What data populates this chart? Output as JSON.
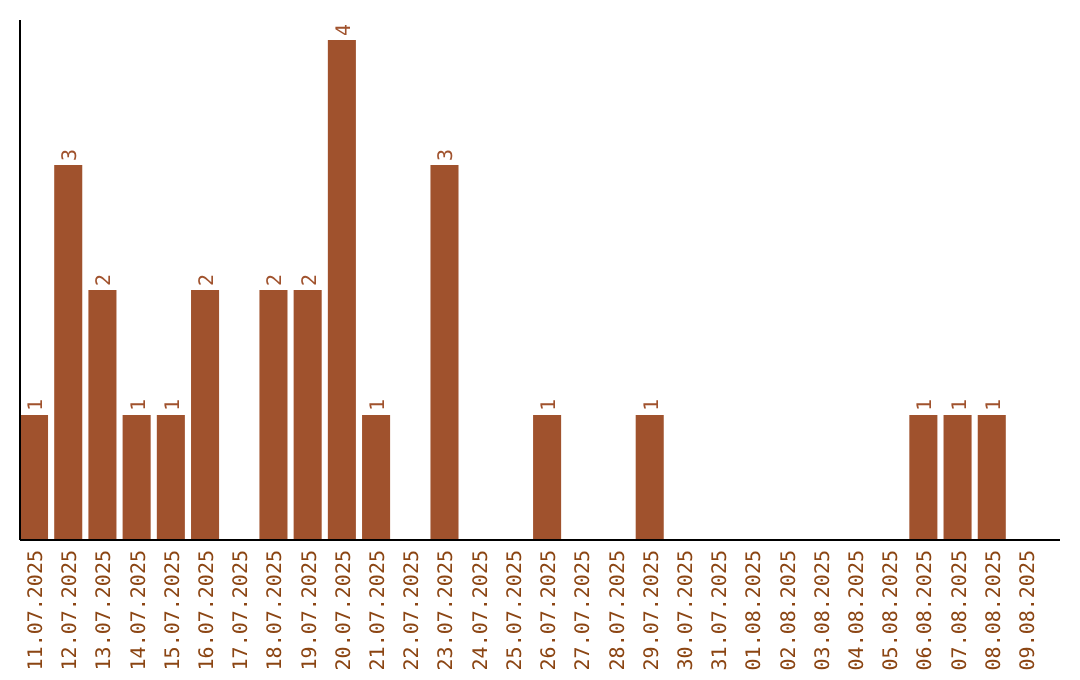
{
  "chart_data": {
    "type": "bar",
    "categories": [
      "11.07.2025",
      "12.07.2025",
      "13.07.2025",
      "14.07.2025",
      "15.07.2025",
      "16.07.2025",
      "17.07.2025",
      "18.07.2025",
      "19.07.2025",
      "20.07.2025",
      "21.07.2025",
      "22.07.2025",
      "23.07.2025",
      "24.07.2025",
      "25.07.2025",
      "26.07.2025",
      "27.07.2025",
      "28.07.2025",
      "29.07.2025",
      "30.07.2025",
      "31.07.2025",
      "01.08.2025",
      "02.08.2025",
      "03.08.2025",
      "04.08.2025",
      "05.08.2025",
      "06.08.2025",
      "07.08.2025",
      "08.08.2025",
      "09.08.2025"
    ],
    "values": [
      1,
      3,
      2,
      1,
      1,
      2,
      0,
      2,
      2,
      4,
      1,
      0,
      3,
      0,
      0,
      1,
      0,
      0,
      1,
      0,
      0,
      0,
      0,
      0,
      0,
      0,
      1,
      1,
      1,
      0
    ],
    "value_labels": [
      "1",
      "3",
      "2",
      "1",
      "1",
      "2",
      null,
      "2",
      "2",
      "4",
      "1",
      null,
      "3",
      null,
      null,
      "1",
      null,
      null,
      "1",
      null,
      null,
      null,
      null,
      null,
      null,
      null,
      "1",
      "1",
      "1",
      null
    ],
    "color": "#a0522d"
  }
}
